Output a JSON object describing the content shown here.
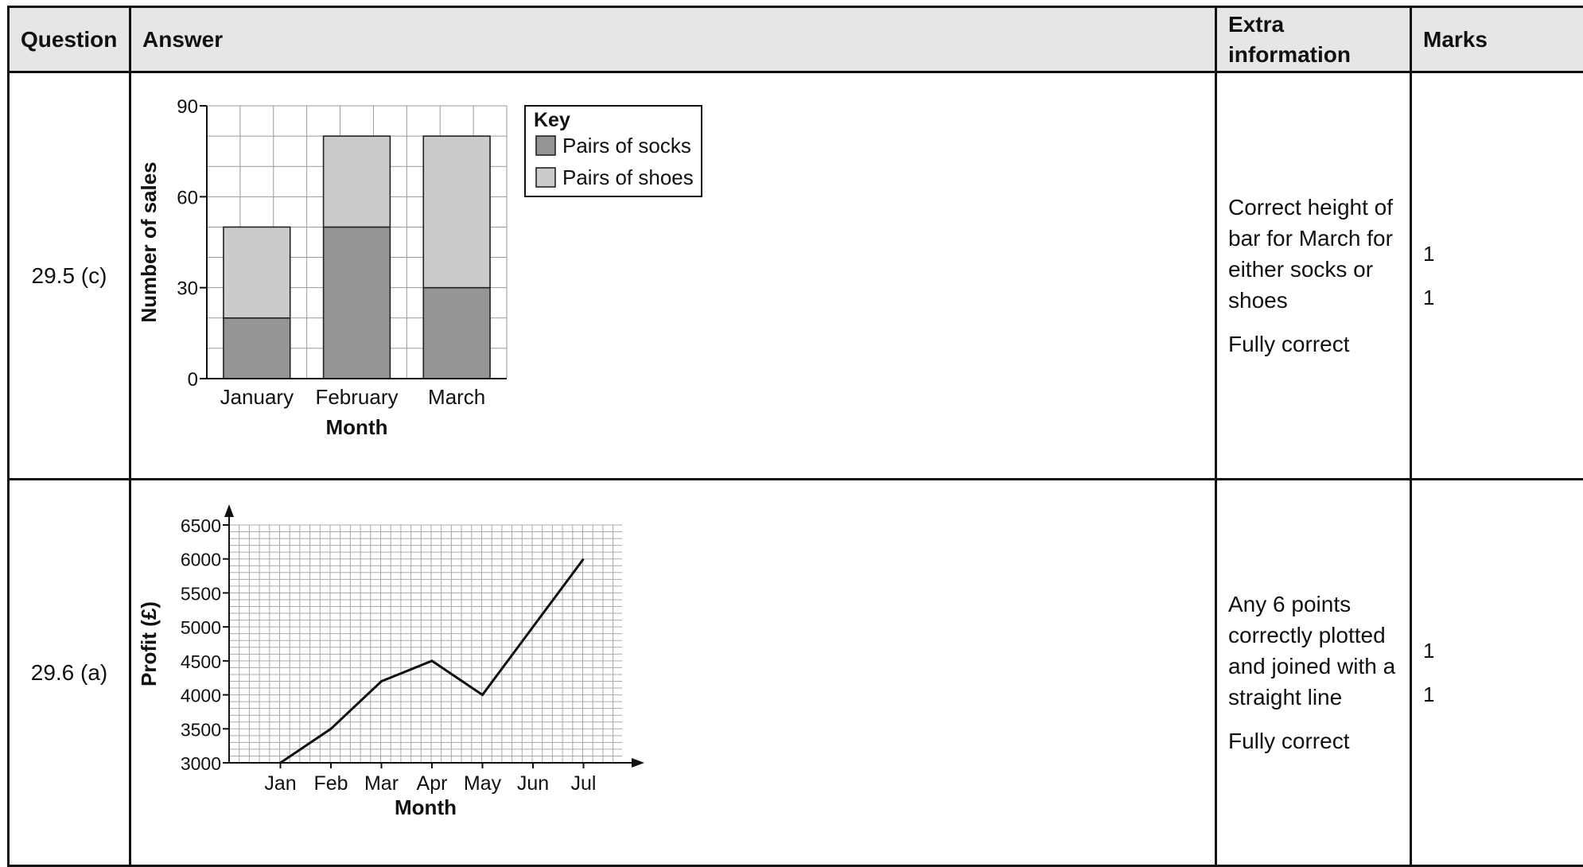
{
  "table": {
    "headers": {
      "question": "Question",
      "answer": "Answer",
      "extra_line1": "Extra",
      "extra_line2": "information",
      "marks": "Marks"
    },
    "rows": [
      {
        "question": "29.5 (c)",
        "extra": [
          "Correct height of bar for March for either socks or shoes",
          "Fully correct"
        ],
        "marks": [
          "1",
          "1"
        ]
      },
      {
        "question": "29.6 (a)",
        "extra": [
          "Any 6 points correctly plotted and joined with a straight line",
          "Fully correct"
        ],
        "marks": [
          "1",
          "1"
        ]
      }
    ]
  },
  "chart_data": [
    {
      "type": "bar",
      "stacked": true,
      "categories": [
        "January",
        "February",
        "March"
      ],
      "series": [
        {
          "name": "Pairs of socks",
          "values": [
            20,
            50,
            30
          ],
          "color": "#959595"
        },
        {
          "name": "Pairs of shoes",
          "values": [
            30,
            30,
            50
          ],
          "color": "#cbcbcb"
        }
      ],
      "xlabel": "Month",
      "ylabel": "Number of sales",
      "ylim": [
        0,
        90
      ],
      "yticks": [
        0,
        30,
        60,
        90
      ],
      "minor_step": 10,
      "legend_title": "Key",
      "legend_position": "top-right",
      "grid": true
    },
    {
      "type": "line",
      "x": [
        "Jan",
        "Feb",
        "Mar",
        "Apr",
        "May",
        "Jun",
        "Jul"
      ],
      "y": [
        3000,
        3500,
        4200,
        4500,
        4000,
        5000,
        6000
      ],
      "xlabel": "Month",
      "ylabel": "Profit (£)",
      "ylim": [
        3000,
        6500
      ],
      "yticks": [
        3000,
        3500,
        4000,
        4500,
        5000,
        5500,
        6000,
        6500
      ],
      "minor_step": 100,
      "grid": true,
      "line_color": "#111111"
    }
  ]
}
